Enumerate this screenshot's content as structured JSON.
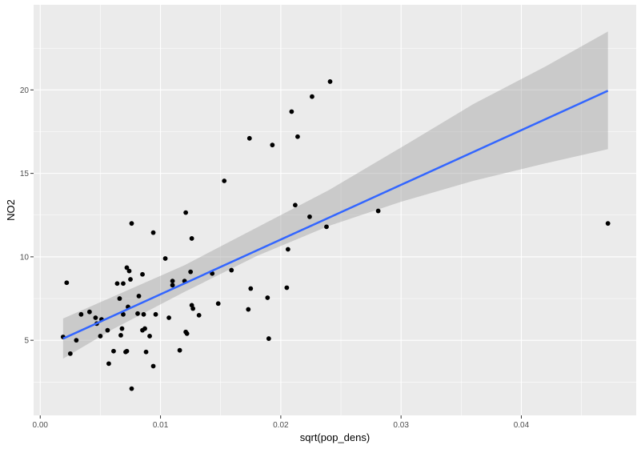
{
  "chart_data": {
    "type": "scatter",
    "title": "",
    "xlabel": "sqrt(pop_dens)",
    "ylabel": "NO2",
    "xlim": [
      -0.00055,
      0.04955
    ],
    "ylim": [
      0.5,
      25.1
    ],
    "x_ticks": [
      0.0,
      0.01,
      0.02,
      0.03,
      0.04
    ],
    "x_tick_labels": [
      "0.00",
      "0.01",
      "0.02",
      "0.03",
      "0.04"
    ],
    "x_minor_ticks": [
      0.005,
      0.015,
      0.025,
      0.035,
      0.045
    ],
    "y_ticks": [
      5,
      10,
      15,
      20
    ],
    "y_tick_labels": [
      "5",
      "10",
      "15",
      "20"
    ],
    "y_minor_ticks": [
      2.5,
      7.5,
      12.5,
      17.5,
      22.5
    ],
    "grid": true,
    "legend": "none",
    "colors": {
      "panel": "#ebebeb",
      "grid": "#ffffff",
      "points": "#000000",
      "fit_line": "#3366ff",
      "ribbon": "#999999"
    },
    "points": [
      {
        "x": 0.0019,
        "y": 5.2
      },
      {
        "x": 0.0022,
        "y": 8.45
      },
      {
        "x": 0.0025,
        "y": 4.2
      },
      {
        "x": 0.003,
        "y": 5.0
      },
      {
        "x": 0.0034,
        "y": 6.55
      },
      {
        "x": 0.0041,
        "y": 6.7
      },
      {
        "x": 0.0046,
        "y": 6.35
      },
      {
        "x": 0.0047,
        "y": 6.0
      },
      {
        "x": 0.005,
        "y": 5.25
      },
      {
        "x": 0.0051,
        "y": 6.25
      },
      {
        "x": 0.0056,
        "y": 5.6
      },
      {
        "x": 0.0057,
        "y": 3.6
      },
      {
        "x": 0.0061,
        "y": 4.35
      },
      {
        "x": 0.0064,
        "y": 8.4
      },
      {
        "x": 0.0066,
        "y": 7.5
      },
      {
        "x": 0.0067,
        "y": 5.3
      },
      {
        "x": 0.0068,
        "y": 5.7
      },
      {
        "x": 0.0069,
        "y": 6.55
      },
      {
        "x": 0.0069,
        "y": 8.4
      },
      {
        "x": 0.0071,
        "y": 4.3
      },
      {
        "x": 0.0072,
        "y": 4.35
      },
      {
        "x": 0.0072,
        "y": 9.35
      },
      {
        "x": 0.0073,
        "y": 7.0
      },
      {
        "x": 0.0074,
        "y": 9.15
      },
      {
        "x": 0.0075,
        "y": 8.65
      },
      {
        "x": 0.0076,
        "y": 2.1
      },
      {
        "x": 0.0076,
        "y": 12.0
      },
      {
        "x": 0.0081,
        "y": 6.6
      },
      {
        "x": 0.0082,
        "y": 7.65
      },
      {
        "x": 0.0085,
        "y": 5.6
      },
      {
        "x": 0.0085,
        "y": 8.95
      },
      {
        "x": 0.0086,
        "y": 6.55
      },
      {
        "x": 0.0087,
        "y": 5.7
      },
      {
        "x": 0.0088,
        "y": 4.3
      },
      {
        "x": 0.0091,
        "y": 5.25
      },
      {
        "x": 0.0094,
        "y": 11.45
      },
      {
        "x": 0.0094,
        "y": 3.45
      },
      {
        "x": 0.0096,
        "y": 6.55
      },
      {
        "x": 0.0104,
        "y": 9.9
      },
      {
        "x": 0.0107,
        "y": 6.35
      },
      {
        "x": 0.011,
        "y": 8.3
      },
      {
        "x": 0.011,
        "y": 8.55
      },
      {
        "x": 0.0116,
        "y": 4.4
      },
      {
        "x": 0.012,
        "y": 8.55
      },
      {
        "x": 0.0121,
        "y": 12.65
      },
      {
        "x": 0.0121,
        "y": 5.5
      },
      {
        "x": 0.0122,
        "y": 5.4
      },
      {
        "x": 0.0125,
        "y": 9.1
      },
      {
        "x": 0.0126,
        "y": 11.1
      },
      {
        "x": 0.0126,
        "y": 7.1
      },
      {
        "x": 0.0127,
        "y": 6.9
      },
      {
        "x": 0.0132,
        "y": 6.5
      },
      {
        "x": 0.0143,
        "y": 9.0
      },
      {
        "x": 0.0148,
        "y": 7.2
      },
      {
        "x": 0.0153,
        "y": 14.55
      },
      {
        "x": 0.0159,
        "y": 9.2
      },
      {
        "x": 0.0173,
        "y": 6.85
      },
      {
        "x": 0.0174,
        "y": 17.1
      },
      {
        "x": 0.0175,
        "y": 8.1
      },
      {
        "x": 0.0189,
        "y": 7.55
      },
      {
        "x": 0.019,
        "y": 5.1
      },
      {
        "x": 0.0193,
        "y": 16.7
      },
      {
        "x": 0.0205,
        "y": 8.15
      },
      {
        "x": 0.0206,
        "y": 10.45
      },
      {
        "x": 0.0209,
        "y": 18.7
      },
      {
        "x": 0.0212,
        "y": 13.1
      },
      {
        "x": 0.0214,
        "y": 17.2
      },
      {
        "x": 0.0224,
        "y": 12.4
      },
      {
        "x": 0.0226,
        "y": 19.6
      },
      {
        "x": 0.0238,
        "y": 11.8
      },
      {
        "x": 0.0241,
        "y": 20.5
      },
      {
        "x": 0.0281,
        "y": 12.75
      },
      {
        "x": 0.0472,
        "y": 12.0
      }
    ],
    "fit_line": {
      "x": [
        0.0019,
        0.0472
      ],
      "y": [
        5.1,
        19.95
      ]
    },
    "ribbon": {
      "x": [
        0.0019,
        0.006,
        0.012,
        0.018,
        0.024,
        0.03,
        0.036,
        0.042,
        0.0472
      ],
      "lower": [
        3.9,
        5.65,
        7.9,
        10.05,
        11.85,
        13.3,
        14.55,
        15.6,
        16.45
      ],
      "upper": [
        6.3,
        7.6,
        9.5,
        11.75,
        14.0,
        16.55,
        19.15,
        21.4,
        23.5
      ]
    }
  }
}
